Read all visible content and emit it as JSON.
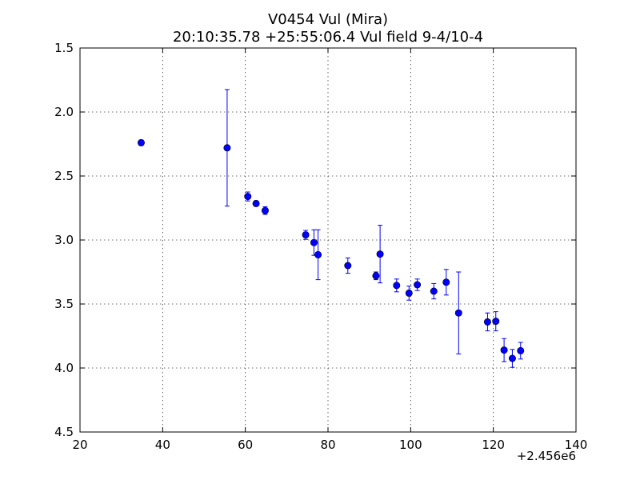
{
  "chart_data": {
    "type": "scatter",
    "title": "V0454 Vul (Mira)",
    "subtitle": "20:10:35.78 +25:55:06.4 Vul field 9-4/10-4",
    "xlabel": "",
    "ylabel": "",
    "x_offset_label": "+2.456e6",
    "xlim": [
      20,
      140
    ],
    "ylim": [
      1.5,
      4.5
    ],
    "y_inverted": true,
    "grid": true,
    "x_ticks": [
      "20",
      "40",
      "60",
      "80",
      "100",
      "120",
      "140"
    ],
    "y_ticks": [
      "1.5",
      "2.0",
      "2.5",
      "3.0",
      "3.5",
      "4.0",
      "4.5"
    ],
    "series": [
      {
        "color": "#0000ff",
        "marker": "circle",
        "points": [
          {
            "x": 34.8,
            "y": 2.24,
            "err": 0.02
          },
          {
            "x": 55.6,
            "y": 2.28,
            "err": 0.455
          },
          {
            "x": 60.6,
            "y": 2.66,
            "err": 0.035
          },
          {
            "x": 62.6,
            "y": 2.715,
            "err": 0.02
          },
          {
            "x": 64.8,
            "y": 2.77,
            "err": 0.03
          },
          {
            "x": 74.6,
            "y": 2.96,
            "err": 0.035
          },
          {
            "x": 76.6,
            "y": 3.02,
            "err": 0.1
          },
          {
            "x": 77.6,
            "y": 3.115,
            "err": 0.195
          },
          {
            "x": 84.8,
            "y": 3.2,
            "err": 0.06
          },
          {
            "x": 91.6,
            "y": 3.28,
            "err": 0.03
          },
          {
            "x": 92.6,
            "y": 3.11,
            "err": 0.225
          },
          {
            "x": 96.6,
            "y": 3.355,
            "err": 0.05
          },
          {
            "x": 99.6,
            "y": 3.415,
            "err": 0.055
          },
          {
            "x": 101.6,
            "y": 3.35,
            "err": 0.045
          },
          {
            "x": 105.6,
            "y": 3.4,
            "err": 0.06
          },
          {
            "x": 108.6,
            "y": 3.33,
            "err": 0.1
          },
          {
            "x": 111.6,
            "y": 3.57,
            "err": 0.32
          },
          {
            "x": 118.6,
            "y": 3.64,
            "err": 0.07
          },
          {
            "x": 120.6,
            "y": 3.635,
            "err": 0.075
          },
          {
            "x": 122.6,
            "y": 3.86,
            "err": 0.09
          },
          {
            "x": 124.6,
            "y": 3.925,
            "err": 0.07
          },
          {
            "x": 126.6,
            "y": 3.865,
            "err": 0.065
          }
        ]
      }
    ]
  }
}
